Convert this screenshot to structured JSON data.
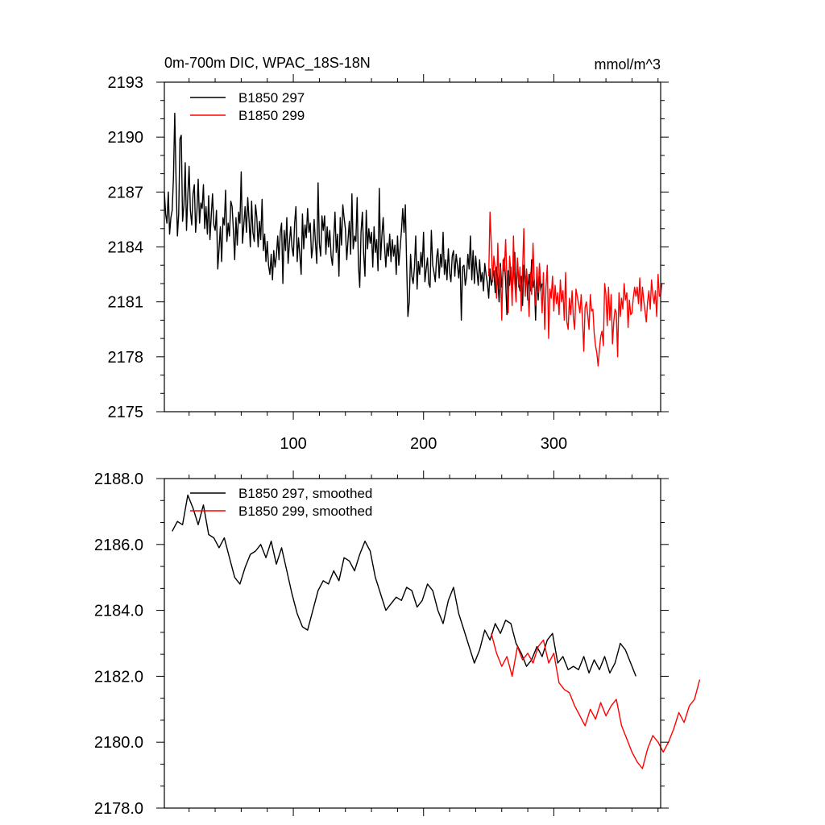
{
  "chart_data": [
    {
      "type": "line",
      "title": "0m-700m DIC, WPAC_18S-18N",
      "units": "mmol/m^3",
      "xlim": [
        1,
        382
      ],
      "ylim": [
        2175,
        2193
      ],
      "xticks": [
        100,
        200,
        300
      ],
      "xtick_labels": [
        "100",
        "200",
        "300"
      ],
      "yticks": [
        2175,
        2178,
        2181,
        2184,
        2187,
        2190,
        2193
      ],
      "ytick_labels": [
        "2175",
        "2178",
        "2181",
        "2184",
        "2187",
        "2190",
        "2193"
      ],
      "legend_position": "top-left",
      "series": [
        {
          "name": "B1850 297",
          "color": "#000000",
          "x_start": 1,
          "x_step": 1,
          "values": [
            2187.0,
            2185.8,
            2185.3,
            2187.0,
            2184.7,
            2185.6,
            2186.0,
            2187.8,
            2191.3,
            2187.5,
            2184.6,
            2185.8,
            2189.9,
            2190.1,
            2185.4,
            2186.3,
            2188.6,
            2184.9,
            2186.8,
            2188.4,
            2186.0,
            2185.2,
            2186.9,
            2187.4,
            2184.8,
            2185.9,
            2187.7,
            2185.3,
            2186.4,
            2186.1,
            2187.4,
            2185.0,
            2186.2,
            2184.7,
            2186.8,
            2184.4,
            2185.7,
            2186.9,
            2185.2,
            2184.9,
            2186.0,
            2182.8,
            2183.9,
            2185.1,
            2183.2,
            2185.6,
            2185.2,
            2187.1,
            2184.3,
            2185.3,
            2184.6,
            2186.5,
            2186.2,
            2184.9,
            2183.3,
            2185.6,
            2184.1,
            2185.9,
            2185.3,
            2188.1,
            2184.2,
            2185.2,
            2186.2,
            2184.8,
            2186.7,
            2185.5,
            2184.0,
            2186.5,
            2184.8,
            2184.3,
            2186.3,
            2185.6,
            2184.0,
            2185.4,
            2184.4,
            2186.6,
            2183.8,
            2184.7,
            2183.2,
            2184.3,
            2183.0,
            2182.5,
            2183.6,
            2182.2,
            2183.8,
            2182.9,
            2183.5,
            2184.6,
            2183.3,
            2184.8,
            2185.3,
            2182.0,
            2184.9,
            2183.8,
            2185.6,
            2183.1,
            2184.2,
            2185.1,
            2184.0,
            2183.5,
            2185.3,
            2186.2,
            2183.2,
            2184.5,
            2183.6,
            2182.5,
            2185.8,
            2183.9,
            2185.2,
            2184.5,
            2186.1,
            2184.8,
            2185.3,
            2183.4,
            2184.0,
            2185.5,
            2184.3,
            2183.1,
            2187.5,
            2184.2,
            2183.5,
            2185.7,
            2184.9,
            2185.7,
            2183.6,
            2185.1,
            2184.0,
            2184.9,
            2183.5,
            2183.0,
            2184.4,
            2185.9,
            2183.7,
            2184.7,
            2182.4,
            2185.6,
            2184.1,
            2186.3,
            2185.6,
            2185.0,
            2183.3,
            2184.4,
            2185.4,
            2183.6,
            2186.9,
            2183.9,
            2184.6,
            2184.3,
            2186.7,
            2183.0,
            2181.8,
            2184.8,
            2185.9,
            2183.6,
            2182.4,
            2186.0,
            2183.9,
            2185.0,
            2184.2,
            2184.8,
            2182.9,
            2185.1,
            2183.7,
            2184.4,
            2182.7,
            2187.2,
            2183.3,
            2184.6,
            2185.6,
            2184.1,
            2182.9,
            2184.2,
            2183.5,
            2184.7,
            2183.2,
            2184.4,
            2183.5,
            2184.1,
            2182.5,
            2184.6,
            2183.0,
            2183.9,
            2184.9,
            2186.1,
            2184.8,
            2186.3,
            2183.1,
            2180.2,
            2181.0,
            2183.6,
            2182.4,
            2182.0,
            2182.9,
            2184.6,
            2181.7,
            2183.2,
            2182.5,
            2183.7,
            2182.9,
            2184.8,
            2182.1,
            2182.8,
            2183.4,
            2182.0,
            2181.8,
            2184.9,
            2183.0,
            2182.6,
            2182.1,
            2183.4,
            2183.9,
            2182.3,
            2183.6,
            2182.9,
            2184.8,
            2182.5,
            2183.3,
            2182.2,
            2183.9,
            2182.6,
            2182.1,
            2183.5,
            2183.8,
            2182.4,
            2183.6,
            2183.0,
            2182.3,
            2183.4,
            2180.0,
            2182.9,
            2183.0,
            2181.9,
            2182.4,
            2183.6,
            2182.8,
            2184.6,
            2182.2,
            2183.8,
            2182.0,
            2183.5,
            2182.7,
            2181.9,
            2183.3,
            2182.1,
            2182.6,
            2181.6,
            2183.1,
            2182.5,
            2182.0,
            2181.2,
            2182.8,
            2181.9,
            2182.3,
            2182.7,
            2181.5,
            2182.9,
            2182.2,
            2181.0,
            2183.1,
            2181.8,
            2182.6,
            2183.4,
            2182.1,
            2180.3,
            2182.7,
            2181.9,
            2182.9,
            2181.4,
            2182.6,
            2183.7,
            2181.2,
            2183.3,
            2182.1,
            2181.6,
            2182.4,
            2180.8,
            2183.0,
            2181.9,
            2182.7,
            2181.1,
            2182.5,
            2181.6,
            2183.3,
            2181.8,
            2182.2,
            2180.0,
            2182.6,
            2181.1,
            2182.4,
            2181.6,
            2182.0
          ]
        },
        {
          "name": "B1850 299",
          "color": "#ff0000",
          "x_start": 250,
          "x_step": 1,
          "values": [
            2182.4,
            2185.9,
            2184.2,
            2182.1,
            2183.5,
            2182.8,
            2181.2,
            2184.2,
            2181.7,
            2182.9,
            2180.0,
            2183.3,
            2182.7,
            2184.4,
            2182.3,
            2180.4,
            2183.5,
            2182.6,
            2180.8,
            2184.6,
            2182.1,
            2181.0,
            2183.4,
            2181.8,
            2182.9,
            2180.5,
            2182.7,
            2185.0,
            2181.3,
            2182.8,
            2181.9,
            2180.2,
            2182.6,
            2181.4,
            2184.2,
            2182.0,
            2180.8,
            2182.9,
            2181.5,
            2183.1,
            2181.9,
            2180.4,
            2182.6,
            2179.5,
            2181.8,
            2183.0,
            2179.0,
            2181.7,
            2181.2,
            2182.4,
            2180.5,
            2181.9,
            2180.9,
            2181.5,
            2180.3,
            2182.2,
            2181.0,
            2181.6,
            2180.0,
            2182.6,
            2179.9,
            2179.5,
            2181.2,
            2180.3,
            2181.6,
            2180.1,
            2179.5,
            2181.7,
            2181.3,
            2180.9,
            2180.4,
            2181.4,
            2180.0,
            2178.3,
            2180.7,
            2181.0,
            2180.3,
            2179.5,
            2181.4,
            2180.5,
            2180.6,
            2179.3,
            2178.6,
            2178.2,
            2177.5,
            2178.4,
            2179.1,
            2179.4,
            2178.6,
            2182.0,
            2181.4,
            2179.7,
            2181.8,
            2180.0,
            2181.4,
            2178.7,
            2179.9,
            2180.6,
            2180.4,
            2178.0,
            2181.5,
            2180.2,
            2181.2,
            2180.6,
            2182.0,
            2181.1,
            2181.5,
            2179.6,
            2181.1,
            2180.3,
            2180.4,
            2181.2,
            2181.8,
            2181.3,
            2181.8,
            2180.9,
            2182.3,
            2180.5,
            2181.8,
            2181.1,
            2180.5,
            2179.9,
            2181.0,
            2181.6,
            2180.6,
            2182.2,
            2181.4,
            2180.9,
            2181.6,
            2180.2,
            2182.5,
            2181.3,
            2181.4,
            2182.0
          ]
        }
      ]
    },
    {
      "type": "line",
      "title": "",
      "xlim": [
        1,
        382
      ],
      "ylim": [
        2178,
        2188
      ],
      "xticks": [
        100,
        200,
        300
      ],
      "xtick_labels": [],
      "yticks": [
        2178.0,
        2180.0,
        2182.0,
        2184.0,
        2186.0,
        2188.0
      ],
      "ytick_labels": [
        "2178.0",
        "2180.0",
        "2182.0",
        "2184.0",
        "2186.0",
        "2188.0"
      ],
      "legend_position": "top-left",
      "series": [
        {
          "name": "B1850 297, smoothed",
          "color": "#000000",
          "x_start": 7,
          "x_step": 4,
          "values": [
            2186.4,
            2186.7,
            2186.6,
            2187.5,
            2187.1,
            2186.6,
            2187.2,
            2186.3,
            2186.2,
            2185.9,
            2186.2,
            2185.6,
            2185.0,
            2184.8,
            2185.3,
            2185.7,
            2185.8,
            2186.0,
            2185.6,
            2186.1,
            2185.4,
            2185.9,
            2185.2,
            2184.5,
            2183.9,
            2183.5,
            2183.4,
            2184.0,
            2184.6,
            2184.9,
            2184.8,
            2185.2,
            2184.9,
            2185.6,
            2185.5,
            2185.2,
            2185.7,
            2186.1,
            2185.8,
            2185.0,
            2184.5,
            2184.0,
            2184.2,
            2184.4,
            2184.3,
            2184.7,
            2184.6,
            2184.1,
            2184.3,
            2184.8,
            2184.6,
            2184.0,
            2183.6,
            2184.3,
            2184.7,
            2183.9,
            2183.4,
            2182.9,
            2182.4,
            2182.8,
            2183.4,
            2183.1,
            2183.6,
            2183.3,
            2183.7,
            2183.6,
            2183.0,
            2182.7,
            2182.3,
            2182.5,
            2182.9,
            2182.6,
            2183.1,
            2183.3,
            2182.4,
            2182.6,
            2182.2,
            2182.3,
            2182.2,
            2182.6,
            2182.1,
            2182.5,
            2182.2,
            2182.6,
            2182.1,
            2182.4,
            2183.0,
            2182.8,
            2182.4,
            2182.0
          ]
        },
        {
          "name": "B1850 299, smoothed",
          "color": "#ff0000",
          "x_start": 252,
          "x_step": 4,
          "values": [
            2183.3,
            2182.7,
            2182.3,
            2182.6,
            2182.0,
            2182.9,
            2182.5,
            2182.7,
            2182.4,
            2182.9,
            2183.1,
            2182.4,
            2182.7,
            2181.8,
            2181.6,
            2181.5,
            2181.1,
            2180.8,
            2180.5,
            2181.0,
            2180.7,
            2181.2,
            2180.8,
            2181.1,
            2181.3,
            2180.5,
            2180.1,
            2179.7,
            2179.4,
            2179.2,
            2179.8,
            2180.2,
            2180.0,
            2179.7,
            2180.0,
            2180.4,
            2180.9,
            2180.6,
            2181.1,
            2181.3,
            2181.9
          ]
        }
      ]
    }
  ]
}
